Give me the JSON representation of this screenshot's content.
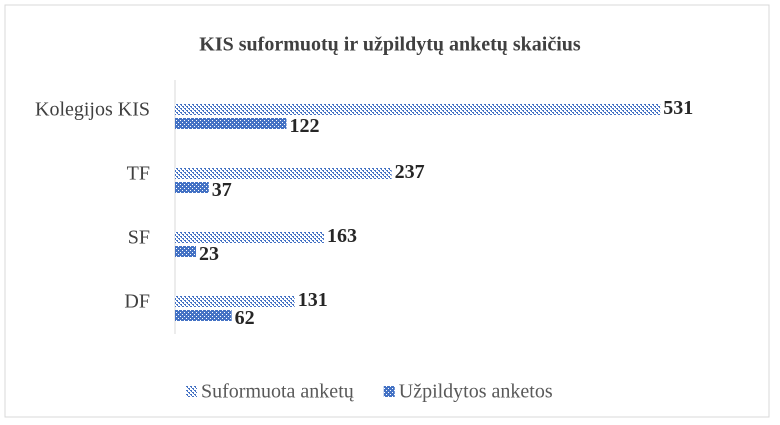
{
  "chart_data": {
    "type": "hbar",
    "title": "KIS suformuotų ir užpildytų anketų skaičius",
    "categories": [
      "Kolegijos KIS",
      "TF",
      "SF",
      "DF"
    ],
    "series": [
      {
        "name": "Suformuota anketų",
        "color": "#4472c4",
        "pattern": "light",
        "values": [
          531,
          237,
          163,
          131
        ]
      },
      {
        "name": "Užpildytos anketos",
        "color": "#4472c4",
        "pattern": "dense",
        "values": [
          122,
          37,
          23,
          62
        ]
      }
    ],
    "xlim": [
      0,
      580
    ],
    "legend": "bottom"
  }
}
